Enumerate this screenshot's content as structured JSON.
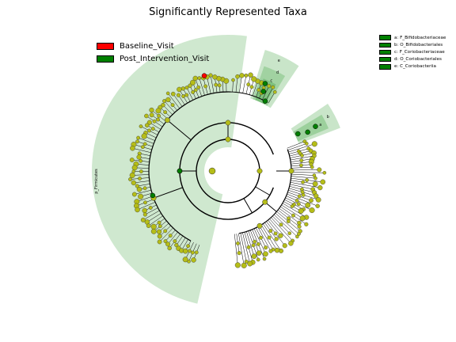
{
  "title": "Significantly Represented Taxa",
  "colors": {
    "baseline": "#ff0000",
    "post": "#008000",
    "node": "#b5bd18",
    "shade": "#a8d5a8"
  },
  "legend": [
    {
      "label": "Baseline_Visit",
      "color": "#ff0000"
    },
    {
      "label": "Post_Intervention_Visit",
      "color": "#008000"
    }
  ],
  "clade_legend": [
    {
      "label": "a: F_Bifidobacteriaceae",
      "color": "#008000"
    },
    {
      "label": "b: O_Bifidobacteriales",
      "color": "#008000"
    },
    {
      "label": "c: F_Coriobacteriaceae",
      "color": "#008000"
    },
    {
      "label": "d: O_Coriobacteriales",
      "color": "#008000"
    },
    {
      "label": "e: C_Coriobacteriia",
      "color": "#008000"
    }
  ],
  "sector_labels": {
    "firmicutes": "p_Firmicutes",
    "a": "a",
    "b": "b",
    "c": "c",
    "d": "d",
    "e": "e"
  }
}
